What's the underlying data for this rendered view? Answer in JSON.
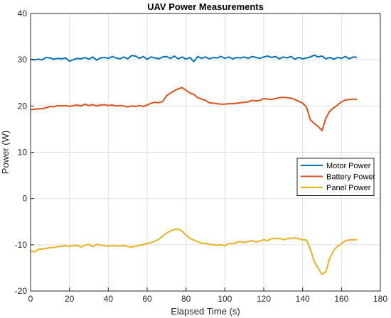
{
  "chart_data": {
    "type": "line",
    "title": "UAV Power Measurements",
    "xlabel": "Elapsed Time (s)",
    "ylabel": "Power (W)",
    "xlim": [
      0,
      180
    ],
    "ylim": [
      -20,
      40
    ],
    "xticks": [
      0,
      20,
      40,
      60,
      80,
      100,
      120,
      140,
      160,
      180
    ],
    "yticks": [
      -20,
      -10,
      0,
      10,
      20,
      30,
      40
    ],
    "grid": true,
    "legend_position": "lower-right",
    "series": [
      {
        "name": "Motor Power",
        "color": "#0072BD",
        "x": [
          0,
          2,
          4,
          6,
          8,
          10,
          12,
          14,
          16,
          18,
          20,
          22,
          24,
          26,
          28,
          30,
          32,
          34,
          36,
          38,
          40,
          42,
          44,
          46,
          48,
          50,
          52,
          54,
          56,
          58,
          60,
          62,
          64,
          66,
          68,
          70,
          72,
          74,
          76,
          78,
          80,
          82,
          84,
          86,
          88,
          90,
          92,
          94,
          96,
          98,
          100,
          102,
          104,
          106,
          108,
          110,
          112,
          114,
          116,
          118,
          120,
          122,
          124,
          126,
          128,
          130,
          132,
          134,
          136,
          138,
          140,
          142,
          144,
          146,
          148,
          150,
          152,
          154,
          156,
          158,
          160,
          162,
          164,
          166,
          168
        ],
        "y": [
          30.1,
          30.0,
          30.1,
          30.0,
          30.5,
          30.4,
          30.1,
          30.3,
          30.2,
          30.4,
          29.7,
          30.0,
          30.3,
          30.2,
          30.5,
          30.1,
          30.6,
          29.9,
          30.4,
          30.5,
          30.3,
          30.7,
          30.4,
          30.2,
          30.6,
          30.2,
          30.9,
          30.8,
          30.3,
          30.7,
          30.1,
          30.6,
          30.4,
          30.2,
          30.6,
          30.7,
          30.3,
          30.8,
          30.2,
          30.6,
          30.1,
          30.5,
          29.6,
          30.7,
          30.3,
          30.6,
          30.2,
          30.5,
          30.4,
          30.7,
          30.3,
          30.6,
          30.2,
          30.5,
          30.4,
          30.6,
          30.3,
          30.7,
          30.5,
          30.3,
          30.6,
          30.8,
          30.5,
          30.7,
          30.2,
          30.6,
          30.4,
          30.7,
          30.1,
          30.5,
          30.2,
          30.4,
          30.6,
          31.0,
          30.6,
          30.8,
          30.2,
          30.5,
          30.1,
          30.5,
          30.3,
          30.7,
          30.2,
          30.6,
          30.5
        ]
      },
      {
        "name": "Battery Power",
        "color": "#D95319",
        "x": [
          0,
          2,
          4,
          6,
          8,
          10,
          12,
          14,
          16,
          18,
          20,
          22,
          24,
          26,
          28,
          30,
          32,
          34,
          36,
          38,
          40,
          42,
          44,
          46,
          48,
          50,
          52,
          54,
          56,
          58,
          60,
          62,
          64,
          66,
          68,
          70,
          72,
          74,
          76,
          78,
          80,
          82,
          84,
          86,
          88,
          90,
          92,
          94,
          96,
          98,
          100,
          102,
          104,
          106,
          108,
          110,
          112,
          114,
          116,
          118,
          120,
          122,
          124,
          126,
          128,
          130,
          132,
          134,
          136,
          138,
          140,
          142,
          144,
          146,
          148,
          150,
          152,
          154,
          156,
          158,
          160,
          162,
          164,
          166,
          168
        ],
        "y": [
          19.2,
          19.3,
          19.4,
          19.4,
          19.6,
          19.9,
          19.8,
          20.1,
          20.0,
          20.1,
          19.9,
          20.1,
          20.2,
          20.0,
          20.4,
          20.1,
          20.3,
          20.0,
          20.2,
          20.3,
          20.1,
          20.2,
          20.0,
          20.1,
          20.0,
          19.8,
          20.0,
          19.9,
          20.1,
          19.9,
          20.2,
          20.6,
          20.8,
          20.7,
          21.0,
          22.2,
          22.8,
          23.3,
          23.7,
          24.0,
          23.4,
          22.8,
          22.5,
          21.8,
          21.5,
          21.2,
          20.7,
          20.6,
          20.5,
          20.4,
          20.4,
          20.5,
          20.5,
          20.6,
          20.7,
          20.8,
          20.9,
          21.2,
          21.1,
          21.2,
          21.6,
          21.5,
          21.4,
          21.6,
          21.8,
          21.9,
          21.8,
          21.7,
          21.4,
          21.0,
          20.6,
          19.8,
          17.0,
          16.2,
          15.6,
          14.7,
          17.4,
          18.9,
          19.6,
          20.2,
          20.9,
          21.3,
          21.4,
          21.5,
          21.4
        ]
      },
      {
        "name": "Panel Power",
        "color": "#EDB120",
        "x": [
          0,
          2,
          4,
          6,
          8,
          10,
          12,
          14,
          16,
          18,
          20,
          22,
          24,
          26,
          28,
          30,
          32,
          34,
          36,
          38,
          40,
          42,
          44,
          46,
          48,
          50,
          52,
          54,
          56,
          58,
          60,
          62,
          64,
          66,
          68,
          70,
          72,
          74,
          76,
          78,
          80,
          82,
          84,
          86,
          88,
          90,
          92,
          94,
          96,
          98,
          100,
          102,
          104,
          106,
          108,
          110,
          112,
          114,
          116,
          118,
          120,
          122,
          124,
          126,
          128,
          130,
          132,
          134,
          136,
          138,
          140,
          142,
          144,
          146,
          148,
          150,
          152,
          154,
          156,
          158,
          160,
          162,
          164,
          166,
          168
        ],
        "y": [
          -11.3,
          -11.5,
          -11.0,
          -10.9,
          -10.8,
          -10.6,
          -10.6,
          -10.4,
          -10.3,
          -10.2,
          -10.4,
          -10.2,
          -10.1,
          -10.5,
          -10.1,
          -9.9,
          -10.4,
          -9.9,
          -10.1,
          -10.2,
          -10.3,
          -10.2,
          -10.2,
          -10.3,
          -10.1,
          -10.4,
          -10.5,
          -10.3,
          -10.1,
          -10.0,
          -9.7,
          -9.6,
          -9.2,
          -8.8,
          -8.1,
          -7.5,
          -7.0,
          -6.7,
          -6.6,
          -7.1,
          -7.9,
          -8.6,
          -9.0,
          -9.3,
          -9.7,
          -9.7,
          -9.9,
          -10.0,
          -10.1,
          -10.0,
          -10.2,
          -9.7,
          -9.8,
          -9.5,
          -9.3,
          -9.5,
          -9.3,
          -9.1,
          -9.4,
          -9.2,
          -8.9,
          -9.1,
          -8.7,
          -8.6,
          -8.6,
          -8.9,
          -8.7,
          -8.6,
          -8.5,
          -8.7,
          -8.9,
          -9.0,
          -11.0,
          -13.6,
          -15.1,
          -16.4,
          -15.8,
          -12.9,
          -11.2,
          -10.3,
          -9.8,
          -9.1,
          -9.0,
          -8.9,
          -8.9
        ]
      }
    ]
  }
}
